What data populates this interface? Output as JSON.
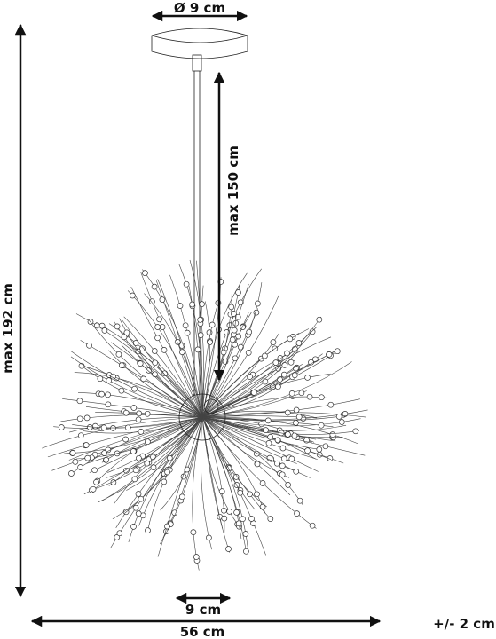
{
  "dimensions": [
    {
      "label": "Ø 9 cm"
    },
    {
      "label": "max 150 cm"
    },
    {
      "label": "max 192 cm"
    },
    {
      "label": "9 cm"
    },
    {
      "label": "56 cm"
    }
  ],
  "tolerance": "+/- 2 cm"
}
